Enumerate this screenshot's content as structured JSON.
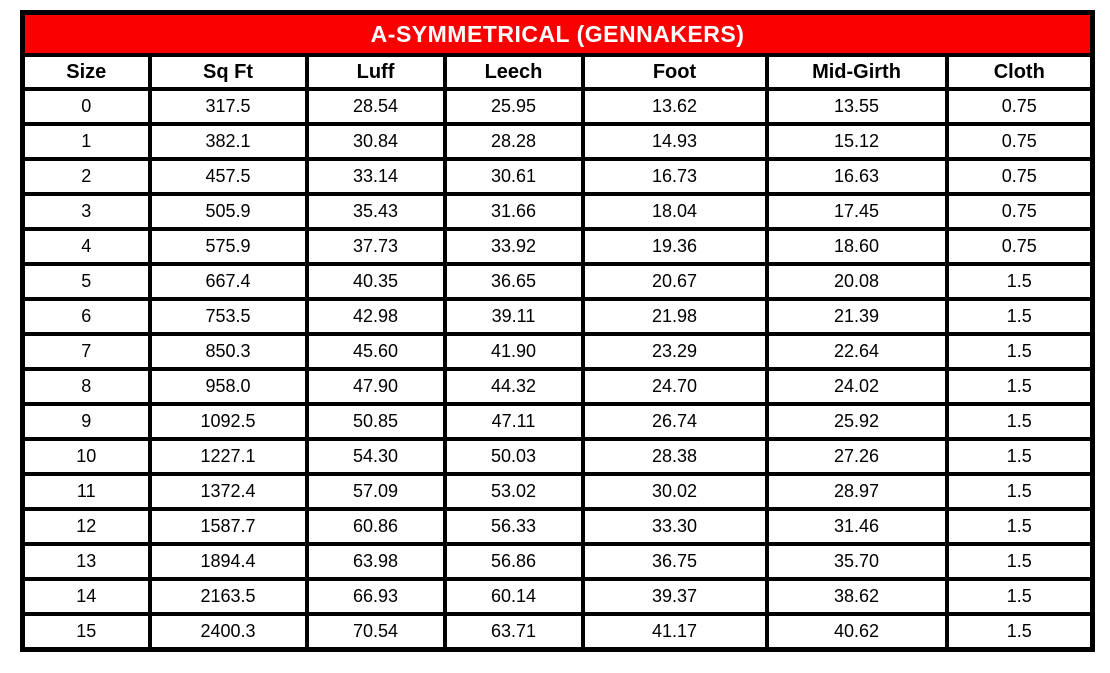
{
  "table": {
    "title": "A-SYMMETRICAL (GENNAKERS)",
    "columns": [
      "Size",
      "Sq Ft",
      "Luff",
      "Leech",
      "Foot",
      "Mid-Girth",
      "Cloth"
    ],
    "rows": [
      [
        "0",
        "317.5",
        "28.54",
        "25.95",
        "13.62",
        "13.55",
        "0.75"
      ],
      [
        "1",
        "382.1",
        "30.84",
        "28.28",
        "14.93",
        "15.12",
        "0.75"
      ],
      [
        "2",
        "457.5",
        "33.14",
        "30.61",
        "16.73",
        "16.63",
        "0.75"
      ],
      [
        "3",
        "505.9",
        "35.43",
        "31.66",
        "18.04",
        "17.45",
        "0.75"
      ],
      [
        "4",
        "575.9",
        "37.73",
        "33.92",
        "19.36",
        "18.60",
        "0.75"
      ],
      [
        "5",
        "667.4",
        "40.35",
        "36.65",
        "20.67",
        "20.08",
        "1.5"
      ],
      [
        "6",
        "753.5",
        "42.98",
        "39.11",
        "21.98",
        "21.39",
        "1.5"
      ],
      [
        "7",
        "850.3",
        "45.60",
        "41.90",
        "23.29",
        "22.64",
        "1.5"
      ],
      [
        "8",
        "958.0",
        "47.90",
        "44.32",
        "24.70",
        "24.02",
        "1.5"
      ],
      [
        "9",
        "1092.5",
        "50.85",
        "47.11",
        "26.74",
        "25.92",
        "1.5"
      ],
      [
        "10",
        "1227.1",
        "54.30",
        "50.03",
        "28.38",
        "27.26",
        "1.5"
      ],
      [
        "11",
        "1372.4",
        "57.09",
        "53.02",
        "30.02",
        "28.97",
        "1.5"
      ],
      [
        "12",
        "1587.7",
        "60.86",
        "56.33",
        "33.30",
        "31.46",
        "1.5"
      ],
      [
        "13",
        "1894.4",
        "63.98",
        "56.86",
        "36.75",
        "35.70",
        "1.5"
      ],
      [
        "14",
        "2163.5",
        "66.93",
        "60.14",
        "39.37",
        "38.62",
        "1.5"
      ],
      [
        "15",
        "2400.3",
        "70.54",
        "63.71",
        "41.17",
        "40.62",
        "1.5"
      ]
    ],
    "colors": {
      "title_background": "#FB0000",
      "title_text": "#FFFFFF",
      "border": "#000000"
    }
  }
}
